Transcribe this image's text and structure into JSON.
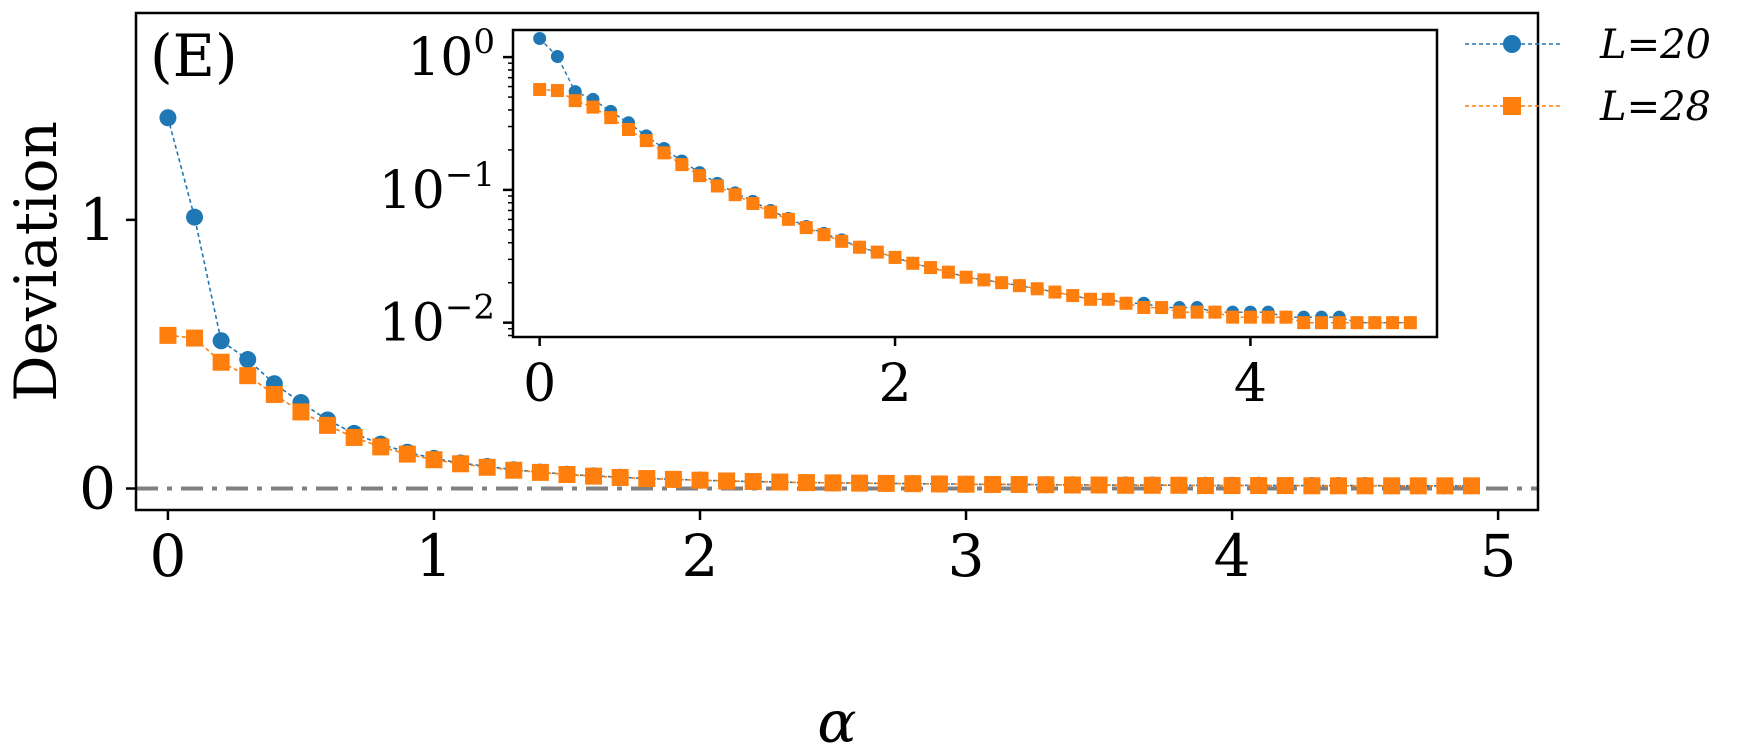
{
  "chart_data": [
    {
      "type": "line",
      "panel_label": "(E)",
      "xlabel": "α",
      "ylabel": "Deviation",
      "xlim": [
        -0.12,
        5.15
      ],
      "ylim": [
        -0.08,
        1.77
      ],
      "xticks": [
        0,
        1,
        2,
        3,
        4,
        5
      ],
      "yticks": [
        0,
        1
      ],
      "grid": false,
      "legend_position": "top-right",
      "reference_line": {
        "y": 0,
        "style": "dash-dot",
        "color": "#808080"
      },
      "x": [
        0,
        0.1,
        0.2,
        0.3,
        0.4,
        0.5,
        0.6,
        0.7,
        0.8,
        0.9,
        1.0,
        1.1,
        1.2,
        1.3,
        1.4,
        1.5,
        1.6,
        1.7,
        1.8,
        1.9,
        2.0,
        2.1,
        2.2,
        2.3,
        2.4,
        2.5,
        2.6,
        2.7,
        2.8,
        2.9,
        3.0,
        3.1,
        3.2,
        3.3,
        3.4,
        3.5,
        3.6,
        3.7,
        3.8,
        3.9,
        4.0,
        4.1,
        4.2,
        4.3,
        4.4,
        4.5,
        4.6,
        4.7,
        4.8,
        4.9
      ],
      "series": [
        {
          "name": "L=20",
          "color": "#1f77b4",
          "marker": "circle",
          "values": [
            1.38,
            1.01,
            0.55,
            0.48,
            0.39,
            0.32,
            0.255,
            0.205,
            0.165,
            0.135,
            0.112,
            0.095,
            0.082,
            0.07,
            0.061,
            0.053,
            0.047,
            0.042,
            0.037,
            0.034,
            0.031,
            0.028,
            0.026,
            0.024,
            0.022,
            0.021,
            0.02,
            0.019,
            0.018,
            0.017,
            0.016,
            0.015,
            0.015,
            0.014,
            0.014,
            0.013,
            0.013,
            0.013,
            0.012,
            0.012,
            0.012,
            0.012,
            0.011,
            0.011,
            0.011,
            0.011,
            0.01,
            0.01,
            0.01,
            0.01
          ]
        },
        {
          "name": "L=28",
          "color": "#ff7f0e",
          "marker": "square",
          "values": [
            0.57,
            0.56,
            0.47,
            0.42,
            0.35,
            0.285,
            0.235,
            0.19,
            0.155,
            0.128,
            0.107,
            0.092,
            0.079,
            0.068,
            0.06,
            0.052,
            0.046,
            0.041,
            0.037,
            0.034,
            0.031,
            0.028,
            0.026,
            0.024,
            0.022,
            0.021,
            0.02,
            0.019,
            0.018,
            0.017,
            0.016,
            0.015,
            0.015,
            0.014,
            0.013,
            0.013,
            0.012,
            0.012,
            0.012,
            0.011,
            0.011,
            0.011,
            0.011,
            0.01,
            0.01,
            0.01,
            0.01,
            0.01,
            0.01,
            0.01
          ]
        }
      ]
    },
    {
      "type": "line",
      "role": "inset",
      "yscale": "log",
      "xlim": [
        -0.15,
        5.05
      ],
      "ylim": [
        0.0078,
        1.6
      ],
      "xticks": [
        0,
        2,
        4
      ],
      "yticks": [
        1,
        0.1,
        0.01
      ],
      "ytick_labels": [
        {
          "base": "10",
          "exp": "0"
        },
        {
          "base": "10",
          "exp": "−1"
        },
        {
          "base": "10",
          "exp": "−2"
        }
      ],
      "grid": false,
      "same_data_as_main": true
    }
  ]
}
